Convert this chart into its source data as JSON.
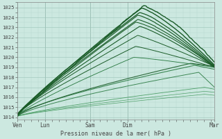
{
  "bg_color": "#cce8e0",
  "grid_color_minor": "#b8d8d0",
  "grid_color_major": "#99c4b8",
  "line_color_dark": "#1a5c28",
  "line_color_medium": "#2e7d46",
  "line_color_light": "#3a9455",
  "ylim": [
    1013.8,
    1025.5
  ],
  "yticks": [
    1014,
    1015,
    1016,
    1017,
    1018,
    1019,
    1020,
    1021,
    1022,
    1023,
    1024,
    1025
  ],
  "xtick_labels": [
    "Ven",
    "Lun",
    "",
    "Sam",
    "",
    "Dim",
    "",
    "",
    "",
    "Mar"
  ],
  "xlabel": "Pression niveau de la mer( hPa )",
  "spine_color": "#888888",
  "tick_color": "#444444"
}
